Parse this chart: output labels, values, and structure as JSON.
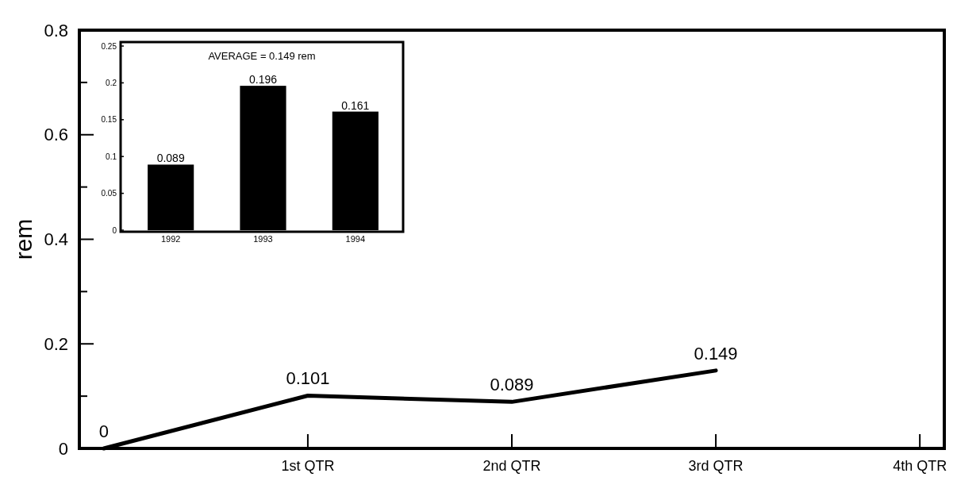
{
  "chart_data": [
    {
      "type": "line",
      "ylabel": "rem",
      "categories": [
        null,
        "1st QTR",
        "2nd QTR",
        "3rd QTR",
        "4th QTR"
      ],
      "series": [
        {
          "color": "#000000",
          "values": [
            0,
            0.101,
            0.089,
            0.149,
            null
          ]
        }
      ],
      "ylim": [
        0,
        0.8
      ],
      "yticks": [
        0,
        {
          "value": 0.1,
          "label": null
        },
        0.2,
        {
          "value": 0.3,
          "label": null
        },
        0.4,
        {
          "value": 0.5,
          "label": null
        },
        0.6,
        {
          "value": 0.7,
          "label": null
        },
        0.8
      ],
      "data_labels": true,
      "marker": "none",
      "line_style": "solid",
      "grid": false
    },
    {
      "type": "bar",
      "categories": [
        "1992",
        "1993",
        "1994"
      ],
      "values": [
        0.089,
        0.196,
        0.161
      ],
      "color": "#000000",
      "ylim": [
        0,
        0.25
      ],
      "yticks": [
        0,
        0.05,
        0.1,
        0.15,
        0.2,
        0.25
      ],
      "data_labels": true,
      "grid": false,
      "annotations": [
        "AVERAGE = 0.149 rem"
      ]
    }
  ]
}
